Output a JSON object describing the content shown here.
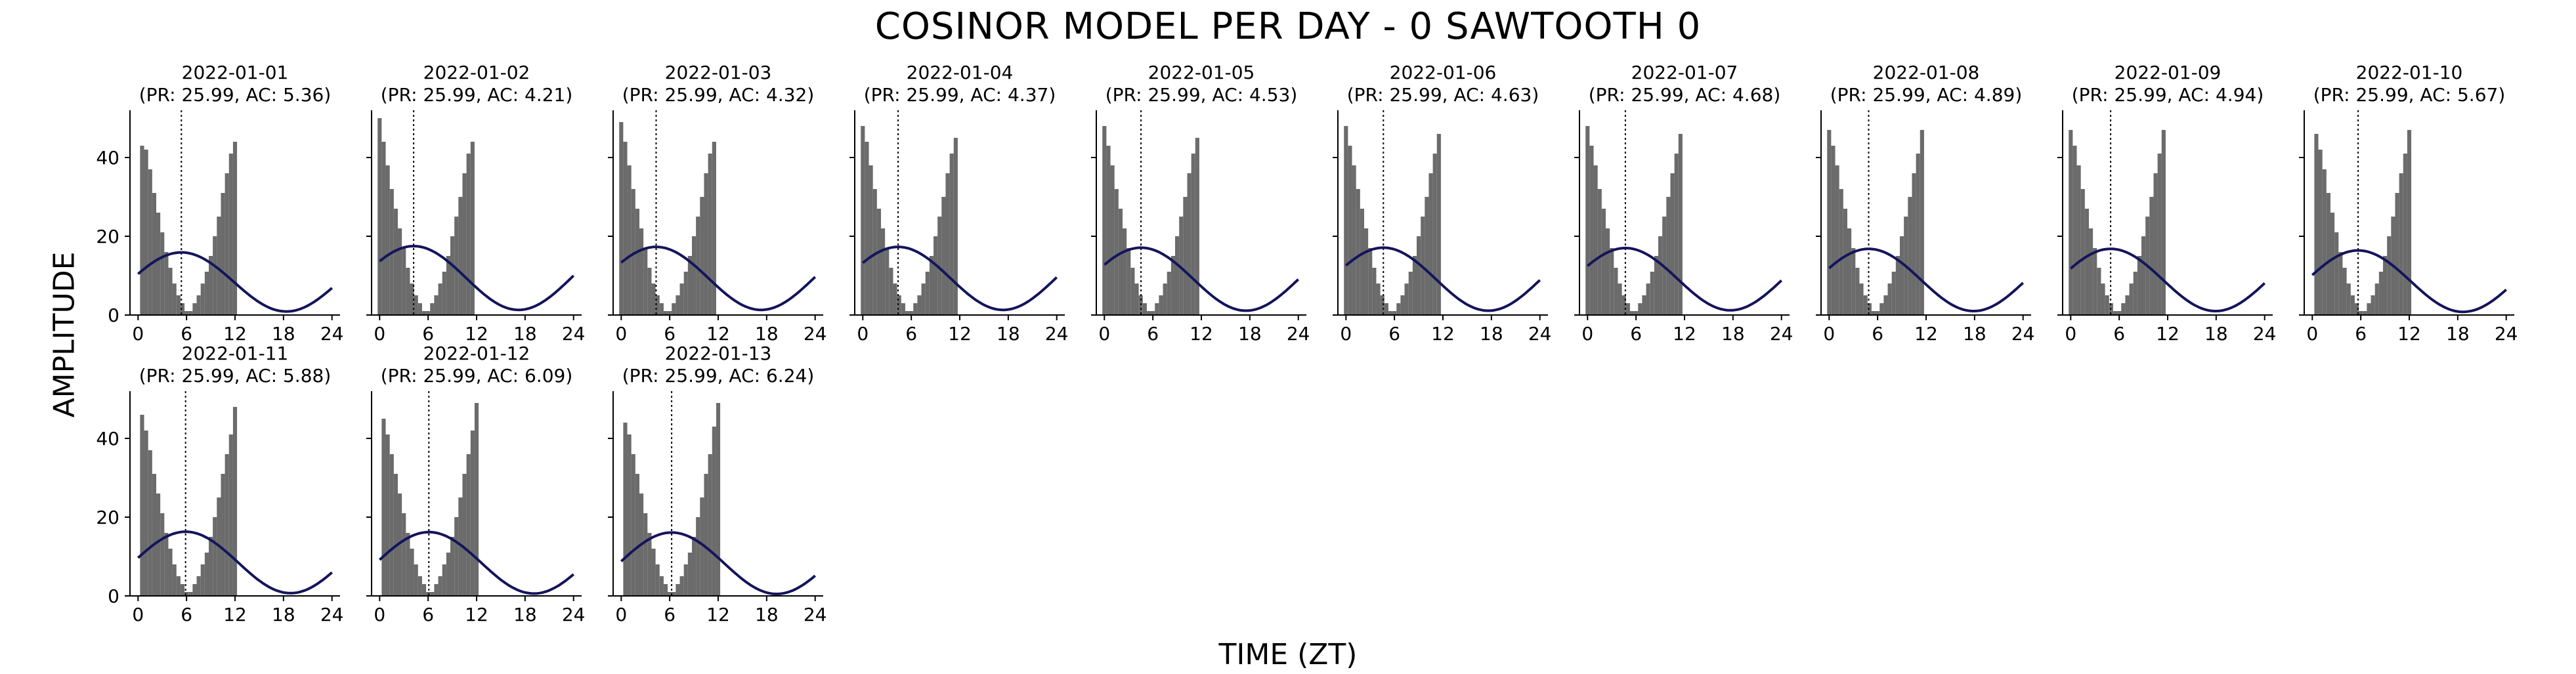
{
  "figure": {
    "title": "COSINOR MODEL PER DAY - 0 SAWTOOTH 0",
    "xlabel": "TIME (ZT)",
    "ylabel": "AMPLITUDE"
  },
  "colors": {
    "bars": "#6b6b6b",
    "cosinor_line": "#14145c",
    "acrophase_line": "#000000"
  },
  "chart_data": {
    "type": "bar",
    "description_of_panels": "small-multiples, one per day",
    "shared": {
      "x_ticks": [
        0,
        6,
        12,
        18,
        24
      ],
      "y_ticks": [
        0,
        20,
        40
      ],
      "xlim": [
        -1,
        25
      ],
      "ylim": [
        0,
        52
      ],
      "period": 25.99,
      "bin_width_hours": 0.5,
      "grid": false
    },
    "panels": [
      {
        "date": "2022-01-01",
        "subtitle": "(PR: 25.99, AC: 5.36)",
        "acrophase": 5.36,
        "mesor": 8.4,
        "amplitude": 7.5,
        "histogram_x": [
          0.5,
          1,
          1.5,
          2,
          2.5,
          3,
          3.5,
          4,
          4.5,
          5,
          5.5,
          6,
          6.5,
          7,
          7.5,
          8,
          8.5,
          9,
          9.5,
          10,
          10.5,
          11,
          11.5,
          12
        ],
        "histogram_y": [
          43,
          42,
          37,
          31,
          26,
          21,
          16,
          12,
          8,
          5,
          3,
          1,
          1,
          3,
          5,
          8,
          11,
          15,
          20,
          25,
          31,
          36,
          41,
          44
        ]
      },
      {
        "date": "2022-01-02",
        "subtitle": "(PR: 25.99, AC: 4.21)",
        "acrophase": 4.21,
        "mesor": 9.4,
        "amplitude": 8.1,
        "histogram_x": [
          0,
          0.5,
          1,
          1.5,
          2,
          2.5,
          3,
          3.5,
          4,
          4.5,
          5,
          5.5,
          6,
          6.5,
          7,
          7.5,
          8,
          8.5,
          9,
          9.5,
          10,
          10.5,
          11,
          11.5
        ],
        "histogram_y": [
          50,
          44,
          38,
          32,
          27,
          22,
          17,
          12,
          8,
          5,
          3,
          1,
          1,
          3,
          5,
          8,
          11,
          15,
          20,
          25,
          30,
          36,
          41,
          44
        ]
      },
      {
        "date": "2022-01-03",
        "subtitle": "(PR: 25.99, AC: 4.32)",
        "acrophase": 4.32,
        "mesor": 9.3,
        "amplitude": 8.0,
        "histogram_x": [
          0,
          0.5,
          1,
          1.5,
          2,
          2.5,
          3,
          3.5,
          4,
          4.5,
          5,
          5.5,
          6,
          6.5,
          7,
          7.5,
          8,
          8.5,
          9,
          9.5,
          10,
          10.5,
          11,
          11.5
        ],
        "histogram_y": [
          49,
          44,
          38,
          32,
          27,
          22,
          17,
          12,
          8,
          5,
          3,
          1,
          1,
          3,
          5,
          8,
          11,
          15,
          20,
          25,
          30,
          36,
          41,
          44
        ]
      },
      {
        "date": "2022-01-04",
        "subtitle": "(PR: 25.99, AC: 4.37)",
        "acrophase": 4.37,
        "mesor": 9.3,
        "amplitude": 8.0,
        "histogram_x": [
          0,
          0.5,
          1,
          1.5,
          2,
          2.5,
          3,
          3.5,
          4,
          4.5,
          5,
          5.5,
          6,
          6.5,
          7,
          7.5,
          8,
          8.5,
          9,
          9.5,
          10,
          10.5,
          11,
          11.5
        ],
        "histogram_y": [
          48,
          44,
          38,
          32,
          27,
          22,
          17,
          12,
          8,
          5,
          3,
          1,
          1,
          3,
          5,
          8,
          11,
          15,
          20,
          25,
          30,
          36,
          41,
          45
        ]
      },
      {
        "date": "2022-01-05",
        "subtitle": "(PR: 25.99, AC: 4.53)",
        "acrophase": 4.53,
        "mesor": 9.1,
        "amplitude": 8.0,
        "histogram_x": [
          0,
          0.5,
          1,
          1.5,
          2,
          2.5,
          3,
          3.5,
          4,
          4.5,
          5,
          5.5,
          6,
          6.5,
          7,
          7.5,
          8,
          8.5,
          9,
          9.5,
          10,
          10.5,
          11,
          11.5
        ],
        "histogram_y": [
          48,
          43,
          38,
          32,
          27,
          22,
          17,
          12,
          8,
          5,
          3,
          1,
          1,
          3,
          5,
          8,
          11,
          15,
          20,
          25,
          30,
          36,
          41,
          45
        ]
      },
      {
        "date": "2022-01-06",
        "subtitle": "(PR: 25.99, AC: 4.63)",
        "acrophase": 4.63,
        "mesor": 9.1,
        "amplitude": 8.0,
        "histogram_x": [
          0,
          0.5,
          1,
          1.5,
          2,
          2.5,
          3,
          3.5,
          4,
          4.5,
          5,
          5.5,
          6,
          6.5,
          7,
          7.5,
          8,
          8.5,
          9,
          9.5,
          10,
          10.5,
          11,
          11.5
        ],
        "histogram_y": [
          48,
          43,
          38,
          32,
          27,
          22,
          17,
          12,
          8,
          5,
          3,
          1,
          1,
          3,
          5,
          8,
          11,
          15,
          20,
          25,
          30,
          36,
          41,
          46
        ]
      },
      {
        "date": "2022-01-07",
        "subtitle": "(PR: 25.99, AC: 4.68)",
        "acrophase": 4.68,
        "mesor": 9.1,
        "amplitude": 7.9,
        "histogram_x": [
          0,
          0.5,
          1,
          1.5,
          2,
          2.5,
          3,
          3.5,
          4,
          4.5,
          5,
          5.5,
          6,
          6.5,
          7,
          7.5,
          8,
          8.5,
          9,
          9.5,
          10,
          10.5,
          11,
          11.5
        ],
        "histogram_y": [
          48,
          43,
          38,
          32,
          27,
          22,
          17,
          12,
          8,
          5,
          3,
          1,
          1,
          3,
          5,
          8,
          11,
          15,
          20,
          25,
          30,
          36,
          41,
          46
        ]
      },
      {
        "date": "2022-01-08",
        "subtitle": "(PR: 25.99, AC: 4.89)",
        "acrophase": 4.89,
        "mesor": 8.9,
        "amplitude": 7.9,
        "histogram_x": [
          0,
          0.5,
          1,
          1.5,
          2,
          2.5,
          3,
          3.5,
          4,
          4.5,
          5,
          5.5,
          6,
          6.5,
          7,
          7.5,
          8,
          8.5,
          9,
          9.5,
          10,
          10.5,
          11,
          11.5
        ],
        "histogram_y": [
          47,
          43,
          38,
          32,
          27,
          22,
          17,
          12,
          8,
          5,
          3,
          1,
          1,
          3,
          5,
          8,
          11,
          15,
          20,
          25,
          30,
          36,
          41,
          47
        ]
      },
      {
        "date": "2022-01-09",
        "subtitle": "(PR: 25.99, AC: 4.94)",
        "acrophase": 4.94,
        "mesor": 8.9,
        "amplitude": 7.9,
        "histogram_x": [
          0,
          0.5,
          1,
          1.5,
          2,
          2.5,
          3,
          3.5,
          4,
          4.5,
          5,
          5.5,
          6,
          6.5,
          7,
          7.5,
          8,
          8.5,
          9,
          9.5,
          10,
          10.5,
          11,
          11.5
        ],
        "histogram_y": [
          47,
          43,
          38,
          32,
          27,
          22,
          17,
          12,
          8,
          5,
          3,
          1,
          1,
          3,
          5,
          8,
          11,
          15,
          20,
          25,
          30,
          36,
          41,
          47
        ]
      },
      {
        "date": "2022-01-10",
        "subtitle": "(PR: 25.99, AC: 5.67)",
        "acrophase": 5.67,
        "mesor": 8.6,
        "amplitude": 7.8,
        "histogram_x": [
          0.5,
          1,
          1.5,
          2,
          2.5,
          3,
          3.5,
          4,
          4.5,
          5,
          5.5,
          6,
          6.5,
          7,
          7.5,
          8,
          8.5,
          9,
          9.5,
          10,
          10.5,
          11,
          11.5,
          12
        ],
        "histogram_y": [
          46,
          42,
          37,
          31,
          26,
          21,
          16,
          12,
          8,
          5,
          3,
          1,
          1,
          3,
          5,
          8,
          11,
          15,
          20,
          25,
          31,
          36,
          41,
          47
        ]
      },
      {
        "date": "2022-01-11",
        "subtitle": "(PR: 25.99, AC: 5.88)",
        "acrophase": 5.88,
        "mesor": 8.5,
        "amplitude": 7.8,
        "histogram_x": [
          0.5,
          1,
          1.5,
          2,
          2.5,
          3,
          3.5,
          4,
          4.5,
          5,
          5.5,
          6,
          6.5,
          7,
          7.5,
          8,
          8.5,
          9,
          9.5,
          10,
          10.5,
          11,
          11.5,
          12
        ],
        "histogram_y": [
          46,
          42,
          37,
          31,
          26,
          21,
          16,
          12,
          8,
          5,
          3,
          1,
          1,
          3,
          5,
          8,
          11,
          15,
          20,
          25,
          31,
          36,
          41,
          48
        ]
      },
      {
        "date": "2022-01-12",
        "subtitle": "(PR: 25.99, AC: 6.09)",
        "acrophase": 6.09,
        "mesor": 8.4,
        "amplitude": 7.8,
        "histogram_x": [
          0.5,
          1,
          1.5,
          2,
          2.5,
          3,
          3.5,
          4,
          4.5,
          5,
          5.5,
          6,
          6.5,
          7,
          7.5,
          8,
          8.5,
          9,
          9.5,
          10,
          10.5,
          11,
          11.5,
          12
        ],
        "histogram_y": [
          45,
          41,
          36,
          31,
          26,
          21,
          16,
          12,
          8,
          5,
          3,
          1,
          1,
          3,
          5,
          8,
          11,
          15,
          20,
          25,
          31,
          36,
          42,
          49
        ]
      },
      {
        "date": "2022-01-13",
        "subtitle": "(PR: 25.99, AC: 6.24)",
        "acrophase": 6.24,
        "mesor": 8.3,
        "amplitude": 7.8,
        "histogram_x": [
          0.5,
          1,
          1.5,
          2,
          2.5,
          3,
          3.5,
          4,
          4.5,
          5,
          5.5,
          6,
          6.5,
          7,
          7.5,
          8,
          8.5,
          9,
          9.5,
          10,
          10.5,
          11,
          11.5,
          12
        ],
        "histogram_y": [
          44,
          41,
          36,
          31,
          26,
          21,
          16,
          12,
          8,
          5,
          3,
          1,
          1,
          3,
          5,
          8,
          11,
          15,
          20,
          25,
          31,
          36,
          43,
          49
        ]
      }
    ]
  }
}
